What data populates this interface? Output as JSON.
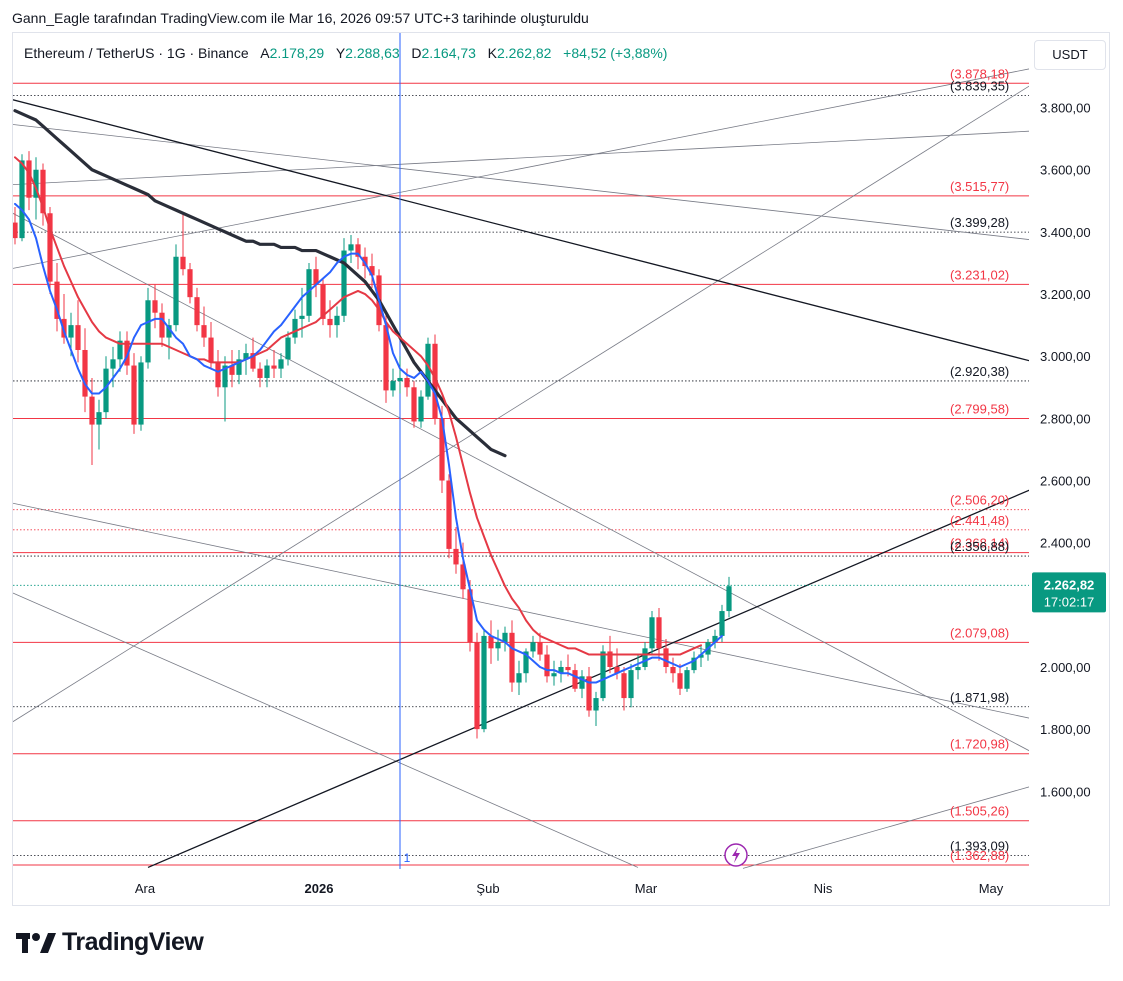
{
  "header": {
    "note": "Gann_Eagle tarafından TradingView.com ile Mar 16, 2026 09:57 UTC+3 tarihinde oluşturuldu"
  },
  "legend": {
    "symbol": "Ethereum / TetherUS · 1G · Binance",
    "open_key": "A",
    "open": "2.178,29",
    "high_key": "Y",
    "high": "2.288,63",
    "low_key": "D",
    "low": "2.164,73",
    "close_key": "K",
    "close": "2.262,82",
    "change": "+84,52 (+3,88%)"
  },
  "currency_button": "USDT",
  "last_price": {
    "value": "2.262,82",
    "countdown": "17:02:17"
  },
  "logo_text": "TradingView",
  "time_marker_label": "1",
  "colors": {
    "up": "#089981",
    "down": "#f23645",
    "ema_fast": "#2962ff",
    "ema_slow": "#e53945",
    "sma_long": "#2a2e39",
    "level_red": "#f23645",
    "level_black": "#131722",
    "trendline": "#131722",
    "gann_fan": "#787b86",
    "time_marker": "#2962ff",
    "price_tag": "#089981"
  },
  "chart_data": {
    "type": "candlestick",
    "title": "Ethereum / TetherUS · 1G · Binance",
    "x_ticks": [
      "Ara",
      "2026",
      "Şub",
      "Mar",
      "Nis",
      "May"
    ],
    "y_ticks": [
      "1.600,00",
      "1.800,00",
      "2.000,00",
      "2.200,00",
      "2.400,00",
      "2.600,00",
      "2.800,00",
      "3.000,00",
      "3.200,00",
      "3.400,00",
      "3.600,00",
      "3.800,00"
    ],
    "y_tick_values": [
      1600,
      1800,
      2000,
      2200,
      2400,
      2600,
      2800,
      3000,
      3200,
      3400,
      3600,
      3800
    ],
    "ylim": [
      1350,
      4040
    ],
    "levels": [
      {
        "value": 3878.18,
        "label": "(3.878,18)",
        "style": "red-solid"
      },
      {
        "value": 3839.35,
        "label": "(3.839,35)",
        "style": "black-dotted"
      },
      {
        "value": 3515.77,
        "label": "(3.515,77)",
        "style": "red-solid"
      },
      {
        "value": 3399.28,
        "label": "(3.399,28)",
        "style": "black-dotted"
      },
      {
        "value": 3231.02,
        "label": "(3.231,02)",
        "style": "red-solid"
      },
      {
        "value": 2920.38,
        "label": "(2.920,38)",
        "style": "black-dotted"
      },
      {
        "value": 2799.58,
        "label": "(2.799,58)",
        "style": "red-solid"
      },
      {
        "value": 2506.2,
        "label": "(2.506,20)",
        "style": "red-dotted"
      },
      {
        "value": 2441.48,
        "label": "(2.441,48)",
        "style": "red-dotted"
      },
      {
        "value": 2368.14,
        "label": "(2.368,14)",
        "style": "red-solid"
      },
      {
        "value": 2356.88,
        "label": "(2.356,88)",
        "style": "black-dotted"
      },
      {
        "value": 2079.08,
        "label": "(2.079,08)",
        "style": "red-solid"
      },
      {
        "value": 1871.98,
        "label": "(1.871,98)",
        "style": "black-dotted"
      },
      {
        "value": 1720.98,
        "label": "(1.720,98)",
        "style": "red-solid"
      },
      {
        "value": 1505.26,
        "label": "(1.505,26)",
        "style": "red-solid"
      },
      {
        "value": 1393.09,
        "label": "(1.393,09)",
        "style": "black-dotted"
      },
      {
        "value": 1362.88,
        "label": "(1.362,88)",
        "style": "red-solid"
      }
    ],
    "last_price": 2262.82,
    "candles": [
      [
        0,
        3430,
        3480,
        3360,
        3380
      ],
      [
        1,
        3380,
        3650,
        3370,
        3630
      ],
      [
        2,
        3630,
        3660,
        3470,
        3510
      ],
      [
        3,
        3510,
        3640,
        3440,
        3600
      ],
      [
        4,
        3600,
        3620,
        3420,
        3460
      ],
      [
        5,
        3460,
        3480,
        3200,
        3240
      ],
      [
        6,
        3240,
        3300,
        3080,
        3120
      ],
      [
        7,
        3120,
        3200,
        3040,
        3060
      ],
      [
        8,
        3060,
        3140,
        3000,
        3100
      ],
      [
        9,
        3100,
        3180,
        2980,
        3020
      ],
      [
        10,
        3020,
        3090,
        2820,
        2870
      ],
      [
        11,
        2870,
        2930,
        2650,
        2780
      ],
      [
        12,
        2780,
        2860,
        2700,
        2820
      ],
      [
        13,
        2820,
        3000,
        2800,
        2960
      ],
      [
        14,
        2960,
        3030,
        2900,
        2990
      ],
      [
        15,
        2990,
        3080,
        2950,
        3050
      ],
      [
        16,
        3050,
        3080,
        2940,
        2970
      ],
      [
        17,
        2970,
        3010,
        2750,
        2780
      ],
      [
        18,
        2780,
        3000,
        2760,
        2980
      ],
      [
        19,
        2980,
        3220,
        2960,
        3180
      ],
      [
        20,
        3180,
        3230,
        3090,
        3140
      ],
      [
        21,
        3140,
        3170,
        3030,
        3060
      ],
      [
        22,
        3060,
        3120,
        2990,
        3100
      ],
      [
        23,
        3100,
        3360,
        3080,
        3320
      ],
      [
        24,
        3320,
        3460,
        3260,
        3280
      ],
      [
        25,
        3280,
        3300,
        3170,
        3190
      ],
      [
        26,
        3190,
        3220,
        3080,
        3100
      ],
      [
        27,
        3100,
        3160,
        3030,
        3060
      ],
      [
        28,
        3060,
        3110,
        2960,
        2980
      ],
      [
        29,
        2980,
        3020,
        2870,
        2900
      ],
      [
        30,
        2900,
        3000,
        2790,
        2970
      ],
      [
        31,
        2970,
        3020,
        2900,
        2940
      ],
      [
        32,
        2940,
        3020,
        2910,
        2990
      ],
      [
        33,
        2990,
        3040,
        2940,
        3010
      ],
      [
        34,
        3010,
        3060,
        2950,
        2960
      ],
      [
        35,
        2960,
        2980,
        2900,
        2930
      ],
      [
        36,
        2930,
        2990,
        2900,
        2970
      ],
      [
        37,
        2970,
        3020,
        2930,
        2960
      ],
      [
        38,
        2960,
        3010,
        2930,
        2990
      ],
      [
        39,
        2990,
        3080,
        2970,
        3060
      ],
      [
        40,
        3060,
        3150,
        3040,
        3120
      ],
      [
        41,
        3120,
        3220,
        3060,
        3130
      ],
      [
        42,
        3130,
        3300,
        3110,
        3280
      ],
      [
        43,
        3280,
        3320,
        3190,
        3230
      ],
      [
        44,
        3230,
        3250,
        3100,
        3120
      ],
      [
        45,
        3120,
        3180,
        3060,
        3100
      ],
      [
        46,
        3100,
        3160,
        3060,
        3130
      ],
      [
        47,
        3130,
        3380,
        3110,
        3340
      ],
      [
        48,
        3340,
        3390,
        3300,
        3360
      ],
      [
        49,
        3360,
        3380,
        3280,
        3320
      ],
      [
        50,
        3320,
        3350,
        3250,
        3290
      ],
      [
        51,
        3290,
        3330,
        3220,
        3260
      ],
      [
        52,
        3260,
        3280,
        3080,
        3100
      ],
      [
        53,
        3100,
        3140,
        2850,
        2890
      ],
      [
        54,
        2890,
        2960,
        2870,
        2920
      ],
      [
        55,
        2920,
        3000,
        2880,
        2930
      ],
      [
        56,
        2930,
        2960,
        2870,
        2900
      ],
      [
        57,
        2900,
        2920,
        2770,
        2790
      ],
      [
        58,
        2790,
        2890,
        2770,
        2870
      ],
      [
        59,
        2870,
        3060,
        2860,
        3040
      ],
      [
        60,
        3040,
        3070,
        2780,
        2800
      ],
      [
        61,
        2800,
        2840,
        2560,
        2600
      ],
      [
        62,
        2600,
        2620,
        2350,
        2380
      ],
      [
        63,
        2380,
        2450,
        2300,
        2330
      ],
      [
        64,
        2330,
        2400,
        2220,
        2250
      ],
      [
        65,
        2250,
        2280,
        2050,
        2080
      ],
      [
        66,
        2080,
        2110,
        1770,
        1800
      ],
      [
        67,
        1800,
        2120,
        1790,
        2100
      ],
      [
        68,
        2100,
        2150,
        2010,
        2060
      ],
      [
        69,
        2060,
        2120,
        2020,
        2080
      ],
      [
        70,
        2080,
        2130,
        2050,
        2110
      ],
      [
        71,
        2110,
        2150,
        1920,
        1950
      ],
      [
        72,
        1950,
        2020,
        1910,
        1980
      ],
      [
        73,
        1980,
        2060,
        1950,
        2050
      ],
      [
        74,
        2050,
        2100,
        2030,
        2080
      ],
      [
        75,
        2080,
        2110,
        2020,
        2040
      ],
      [
        76,
        2040,
        2070,
        1950,
        1970
      ],
      [
        77,
        1970,
        2020,
        1940,
        1980
      ],
      [
        78,
        1980,
        2020,
        1950,
        2000
      ],
      [
        79,
        2000,
        2040,
        1970,
        1990
      ],
      [
        80,
        1990,
        2010,
        1920,
        1930
      ],
      [
        81,
        1930,
        1990,
        1900,
        1970
      ],
      [
        82,
        1970,
        2000,
        1840,
        1860
      ],
      [
        83,
        1860,
        1920,
        1810,
        1900
      ],
      [
        84,
        1900,
        2070,
        1890,
        2050
      ],
      [
        85,
        2050,
        2100,
        1980,
        2000
      ],
      [
        86,
        2000,
        2060,
        1960,
        1980
      ],
      [
        87,
        1980,
        2000,
        1860,
        1900
      ],
      [
        88,
        1900,
        2010,
        1870,
        1990
      ],
      [
        89,
        1990,
        2040,
        1960,
        2000
      ],
      [
        90,
        2000,
        2080,
        1990,
        2060
      ],
      [
        91,
        2060,
        2180,
        2040,
        2160
      ],
      [
        92,
        2160,
        2190,
        2020,
        2060
      ],
      [
        93,
        2060,
        2090,
        1980,
        2000
      ],
      [
        94,
        2000,
        2030,
        1950,
        1980
      ],
      [
        95,
        1980,
        2010,
        1910,
        1930
      ],
      [
        96,
        1930,
        2000,
        1920,
        1990
      ],
      [
        97,
        1990,
        2050,
        1980,
        2030
      ],
      [
        98,
        2030,
        2070,
        2000,
        2040
      ],
      [
        99,
        2040,
        2090,
        2020,
        2080
      ],
      [
        100,
        2080,
        2120,
        2060,
        2100
      ],
      [
        101,
        2100,
        2200,
        2080,
        2180
      ],
      [
        102,
        2180,
        2290,
        2160,
        2260
      ]
    ],
    "ema_fast": [
      3490,
      3470,
      3440,
      3380,
      3290,
      3210,
      3150,
      3080,
      3020,
      2960,
      2910,
      2880,
      2880,
      2900,
      2930,
      2960,
      3000,
      3060,
      3100,
      3110,
      3120,
      3120,
      3090,
      3060,
      3040,
      3000,
      2990,
      2970,
      2960,
      2950,
      2960,
      2970,
      2980,
      2990,
      3000,
      3020,
      3050,
      3080,
      3100,
      3130,
      3160,
      3190,
      3210,
      3230,
      3250,
      3270,
      3300,
      3320,
      3330,
      3330,
      3300,
      3260,
      3180,
      3100,
      3010,
      2960,
      2940,
      2930,
      2950,
      2920,
      2880,
      2800,
      2650,
      2480,
      2350,
      2250,
      2150,
      2120,
      2100,
      2090,
      2080,
      2060,
      2050,
      2040,
      2020,
      2000,
      1990,
      1990,
      1980,
      1980,
      1970,
      1960,
      1950,
      1950,
      1960,
      1970,
      1980,
      1990,
      2000,
      2010,
      2020,
      2030,
      2030,
      2020,
      2010,
      2000,
      2010,
      2020,
      2040,
      2060,
      2080,
      2100
    ],
    "ema_slow": [
      3640,
      3620,
      3590,
      3540,
      3480,
      3410,
      3350,
      3290,
      3240,
      3190,
      3150,
      3110,
      3080,
      3060,
      3050,
      3040,
      3040,
      3040,
      3040,
      3040,
      3040,
      3040,
      3030,
      3020,
      3010,
      3000,
      2990,
      2990,
      2980,
      2980,
      2980,
      2980,
      2980,
      2990,
      3000,
      3010,
      3020,
      3040,
      3060,
      3070,
      3080,
      3090,
      3100,
      3110,
      3130,
      3150,
      3170,
      3190,
      3200,
      3210,
      3200,
      3180,
      3150,
      3110,
      3080,
      3060,
      3040,
      3020,
      3000,
      2970,
      2930,
      2880,
      2820,
      2740,
      2650,
      2560,
      2480,
      2420,
      2360,
      2310,
      2260,
      2220,
      2190,
      2150,
      2120,
      2100,
      2090,
      2080,
      2070,
      2060,
      2060,
      2050,
      2040,
      2040,
      2040,
      2040,
      2040,
      2040,
      2040,
      2040,
      2040,
      2040,
      2040,
      2040,
      2040,
      2040,
      2050,
      2060,
      2070
    ],
    "sma_long": [
      3790,
      3780,
      3770,
      3760,
      3740,
      3720,
      3700,
      3680,
      3660,
      3640,
      3620,
      3600,
      3590,
      3580,
      3570,
      3560,
      3550,
      3540,
      3530,
      3520,
      3500,
      3490,
      3480,
      3470,
      3460,
      3450,
      3440,
      3430,
      3420,
      3410,
      3400,
      3390,
      3380,
      3370,
      3370,
      3360,
      3360,
      3360,
      3350,
      3350,
      3350,
      3340,
      3340,
      3340,
      3330,
      3320,
      3310,
      3300,
      3280,
      3260,
      3240,
      3210,
      3180,
      3140,
      3100,
      3060,
      3020,
      2980,
      2950,
      2920,
      2890,
      2860,
      2830,
      2800,
      2780,
      2760,
      2740,
      2720,
      2700,
      2690,
      2680
    ]
  }
}
